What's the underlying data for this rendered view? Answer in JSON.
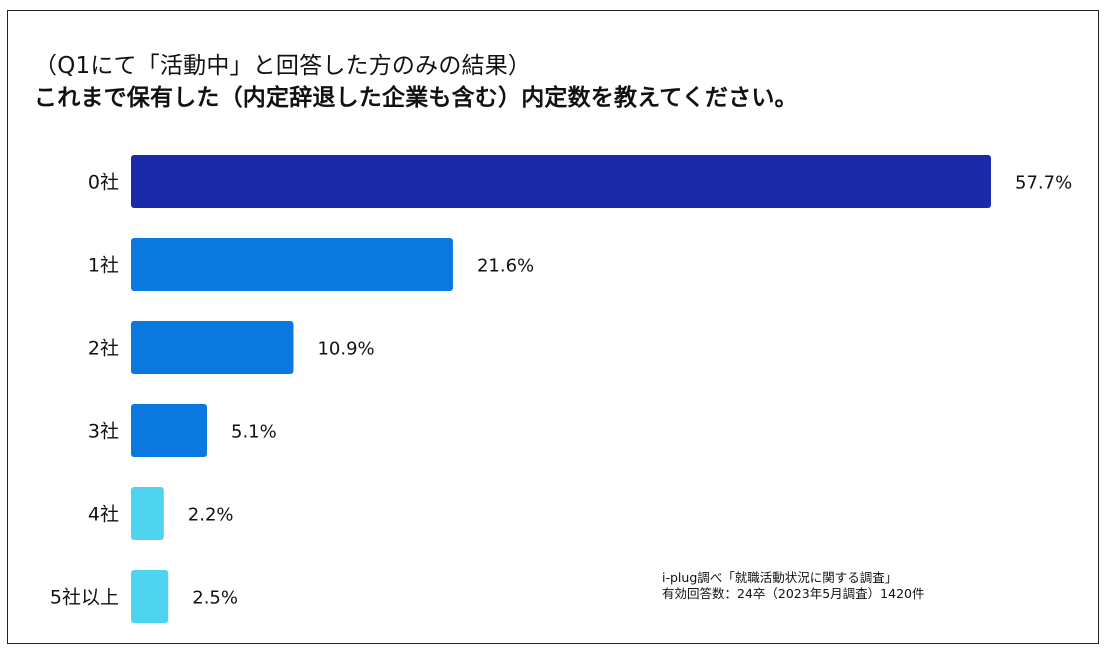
{
  "chart_data": {
    "type": "bar",
    "orientation": "horizontal",
    "title_line1": "（Q1にて「活動中」と回答した方のみの結果）",
    "title_line2": "これまで保有した（内定辞退した企業も含む）内定数を教えてください。",
    "categories": [
      "0社",
      "1社",
      "2社",
      "3社",
      "4社",
      "5社以上"
    ],
    "values": [
      57.7,
      21.6,
      10.9,
      5.1,
      2.2,
      2.5
    ],
    "value_labels": [
      "57.7%",
      "21.6%",
      "10.9%",
      "5.1%",
      "2.2%",
      "2.5%"
    ],
    "colors": [
      "#1a2aa8",
      "#0a78de",
      "#0a78de",
      "#0a78de",
      "#4fd4ef",
      "#4fd4ef"
    ],
    "xlim": [
      0,
      57.7
    ],
    "xlabel": "",
    "ylabel": "",
    "grid": false,
    "legend": "none"
  },
  "source": {
    "line1": "i-plug調べ「就職活動状況に関する調査」",
    "line2": "有効回答数：24卒（2023年5月調査）1420件"
  }
}
